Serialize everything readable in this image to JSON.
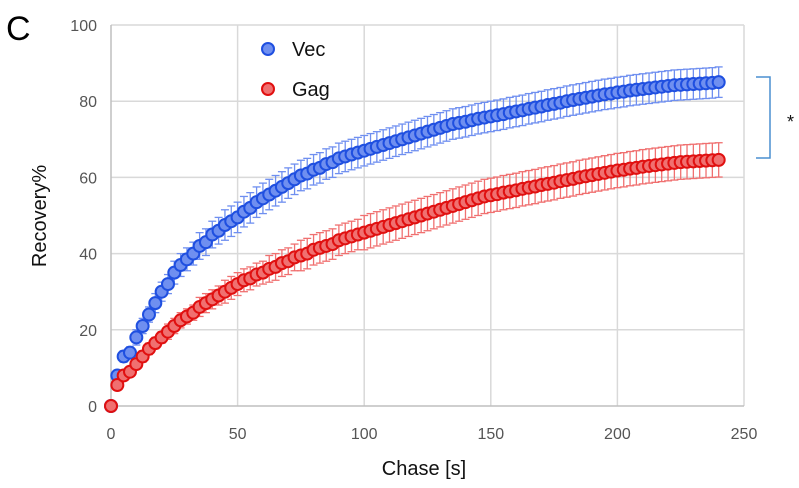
{
  "panel_label": "C",
  "chart_data": {
    "type": "scatter",
    "title": "",
    "xlabel": "Chase [s]",
    "ylabel": "Recovery%",
    "xlim": [
      0,
      250
    ],
    "ylim": [
      0,
      100
    ],
    "xticks": [
      "0",
      "50",
      "100",
      "150",
      "200",
      "250"
    ],
    "yticks": [
      "0",
      "20",
      "40",
      "60",
      "80",
      "100"
    ],
    "grid": true,
    "legend_position": "top-left",
    "significance_mark": "*",
    "series": [
      {
        "name": "Vec",
        "color": "#1f4fe0",
        "error_color": "#6f8ff0",
        "x": [
          0,
          2.5,
          5,
          7.5,
          10,
          12.5,
          15,
          17.5,
          20,
          22.5,
          25,
          27.5,
          30,
          32.5,
          35,
          37.5,
          40,
          42.5,
          45,
          47.5,
          50,
          52.5,
          55,
          57.5,
          60,
          62.5,
          65,
          67.5,
          70,
          72.5,
          75,
          77.5,
          80,
          82.5,
          85,
          87.5,
          90,
          92.5,
          95,
          97.5,
          100,
          102.5,
          105,
          107.5,
          110,
          112.5,
          115,
          117.5,
          120,
          122.5,
          125,
          127.5,
          130,
          132.5,
          135,
          137.5,
          140,
          142.5,
          145,
          147.5,
          150,
          152.5,
          155,
          157.5,
          160,
          162.5,
          165,
          167.5,
          170,
          172.5,
          175,
          177.5,
          180,
          182.5,
          185,
          187.5,
          190,
          192.5,
          195,
          197.5,
          200,
          202.5,
          205,
          207.5,
          210,
          212.5,
          215,
          217.5,
          220,
          222.5,
          225,
          227.5,
          230,
          232.5,
          235,
          237.5,
          240
        ],
        "y": [
          0,
          8,
          13,
          14,
          18,
          21,
          24,
          27,
          30,
          32,
          35,
          37,
          38.5,
          40,
          42,
          43,
          45,
          46,
          47.5,
          48.5,
          49.5,
          51,
          52,
          53.5,
          54.5,
          55.5,
          56.5,
          57.5,
          58.5,
          59.5,
          60.5,
          61,
          62,
          62.5,
          63.5,
          64,
          65,
          65.5,
          66,
          66.5,
          67,
          67.5,
          68,
          68.5,
          69,
          69.5,
          70,
          70.5,
          71,
          71.5,
          72,
          72.5,
          73,
          73.5,
          74,
          74.3,
          74.6,
          75,
          75.4,
          75.7,
          76,
          76.3,
          76.6,
          77,
          77.3,
          77.6,
          78,
          78.3,
          78.6,
          79,
          79.3,
          79.6,
          80,
          80.3,
          80.6,
          80.9,
          81.2,
          81.5,
          81.8,
          82,
          82.3,
          82.5,
          82.8,
          83,
          83.2,
          83.4,
          83.6,
          83.8,
          84,
          84.2,
          84.3,
          84.4,
          84.5,
          84.6,
          84.7,
          84.8,
          85
        ],
        "error": [
          0,
          1,
          1.5,
          1.5,
          2,
          2,
          2,
          2.5,
          2.5,
          2.5,
          3,
          3,
          3,
          3,
          3.5,
          3.5,
          3.5,
          3.5,
          4,
          4,
          4,
          4,
          4,
          4,
          4,
          4,
          4,
          4,
          4,
          4,
          4,
          4,
          4,
          4,
          4,
          4,
          4,
          4,
          4,
          4,
          4,
          4,
          4,
          4,
          4,
          4,
          4,
          4,
          4,
          4,
          4,
          4,
          4,
          4,
          4,
          4,
          4,
          4,
          4,
          4,
          4,
          4,
          4,
          4,
          4,
          4,
          4,
          4,
          4,
          4,
          4,
          4,
          4,
          4,
          4,
          4,
          4,
          4,
          4,
          4,
          4,
          4,
          4,
          4,
          4,
          4,
          4,
          4,
          4,
          4,
          4,
          4,
          4,
          4,
          4,
          4,
          4
        ]
      },
      {
        "name": "Gag",
        "color": "#e01010",
        "error_color": "#f07070",
        "x": [
          0,
          2.5,
          5,
          7.5,
          10,
          12.5,
          15,
          17.5,
          20,
          22.5,
          25,
          27.5,
          30,
          32.5,
          35,
          37.5,
          40,
          42.5,
          45,
          47.5,
          50,
          52.5,
          55,
          57.5,
          60,
          62.5,
          65,
          67.5,
          70,
          72.5,
          75,
          77.5,
          80,
          82.5,
          85,
          87.5,
          90,
          92.5,
          95,
          97.5,
          100,
          102.5,
          105,
          107.5,
          110,
          112.5,
          115,
          117.5,
          120,
          122.5,
          125,
          127.5,
          130,
          132.5,
          135,
          137.5,
          140,
          142.5,
          145,
          147.5,
          150,
          152.5,
          155,
          157.5,
          160,
          162.5,
          165,
          167.5,
          170,
          172.5,
          175,
          177.5,
          180,
          182.5,
          185,
          187.5,
          190,
          192.5,
          195,
          197.5,
          200,
          202.5,
          205,
          207.5,
          210,
          212.5,
          215,
          217.5,
          220,
          222.5,
          225,
          227.5,
          230,
          232.5,
          235,
          237.5,
          240
        ],
        "y": [
          0,
          5.5,
          8,
          9,
          11,
          13,
          15,
          16.5,
          18,
          19.5,
          21,
          22.5,
          23.5,
          24.5,
          26,
          27,
          28,
          29,
          30,
          31,
          32,
          33,
          33.5,
          34.5,
          35,
          36,
          36.5,
          37.5,
          38,
          39,
          39.5,
          40,
          41,
          41.5,
          42,
          42.5,
          43.5,
          44,
          44.5,
          45,
          45.5,
          46,
          46.5,
          47,
          47.5,
          48,
          48.5,
          49,
          49.5,
          50,
          50.5,
          51,
          51.5,
          52,
          52.5,
          53,
          53.5,
          54,
          54.5,
          55,
          55.3,
          55.6,
          56,
          56.3,
          56.6,
          57,
          57.3,
          57.6,
          58,
          58.3,
          58.6,
          59,
          59.3,
          59.6,
          60,
          60.3,
          60.6,
          60.9,
          61.2,
          61.5,
          61.8,
          62,
          62.3,
          62.5,
          62.8,
          63,
          63.2,
          63.4,
          63.6,
          63.8,
          64,
          64.1,
          64.2,
          64.3,
          64.4,
          64.5,
          64.6
        ],
        "error": [
          0,
          0.5,
          1,
          1,
          1,
          1.5,
          1.5,
          1.5,
          1.5,
          2,
          2,
          2,
          2,
          2,
          2.5,
          2.5,
          2.5,
          2.5,
          3,
          3,
          3,
          3,
          3,
          3,
          3,
          3.5,
          3.5,
          3.5,
          3.5,
          3.5,
          4,
          4,
          4,
          4,
          4,
          4,
          4,
          4,
          4,
          4,
          4.5,
          4.5,
          4.5,
          4.5,
          4.5,
          4.5,
          4.5,
          4.5,
          4.5,
          4.5,
          4.5,
          4.5,
          4.5,
          4.5,
          4.5,
          4.5,
          4.5,
          4.5,
          4.5,
          4.5,
          4.5,
          4.5,
          4.5,
          4.5,
          4.5,
          4.5,
          4.5,
          4.5,
          4.5,
          4.5,
          4.5,
          4.5,
          4.5,
          4.5,
          4.5,
          4.5,
          4.5,
          4.5,
          4.5,
          4.5,
          4.5,
          4.5,
          4.5,
          4.5,
          4.5,
          4.5,
          4.5,
          4.5,
          4.5,
          4.5,
          4.5,
          4.5,
          4.5,
          4.5,
          4.5,
          4.5,
          4.5
        ]
      }
    ]
  }
}
